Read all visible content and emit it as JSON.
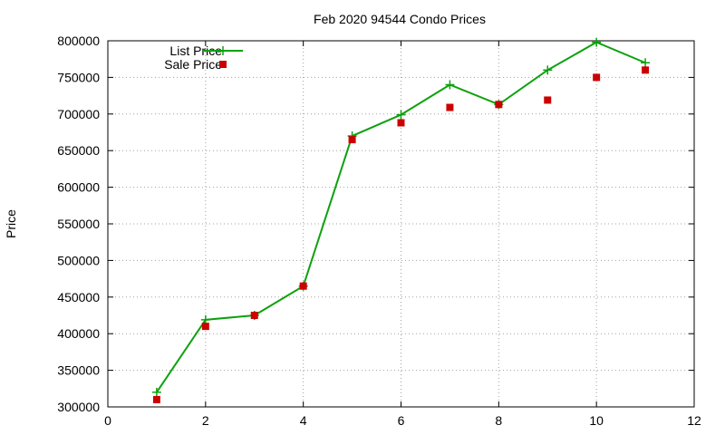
{
  "chart_data": {
    "type": "line",
    "title": "Feb 2020 94544 Condo Prices",
    "xlabel": "",
    "ylabel": "Price",
    "xlim": [
      0,
      12
    ],
    "ylim": [
      300000,
      800000
    ],
    "xticks": [
      0,
      2,
      4,
      6,
      8,
      10,
      12
    ],
    "yticks": [
      300000,
      350000,
      400000,
      450000,
      500000,
      550000,
      600000,
      650000,
      700000,
      750000,
      800000
    ],
    "grid": true,
    "legend_position": "top-left",
    "series": [
      {
        "name": "List Price",
        "style": "line+cross",
        "color": "#0da10d",
        "x": [
          1,
          2,
          3,
          4,
          5,
          6,
          7,
          8,
          9,
          10,
          11
        ],
        "y": [
          320000,
          419000,
          425000,
          465000,
          670000,
          699000,
          740000,
          713000,
          760000,
          798000,
          770000
        ]
      },
      {
        "name": "Sale Price",
        "style": "square",
        "color": "#cc0000",
        "x": [
          1,
          2,
          3,
          4,
          5,
          6,
          7,
          8,
          9,
          10,
          11
        ],
        "y": [
          310000,
          410000,
          425000,
          465000,
          665000,
          688000,
          709000,
          713000,
          719000,
          750000,
          760000
        ]
      }
    ]
  }
}
